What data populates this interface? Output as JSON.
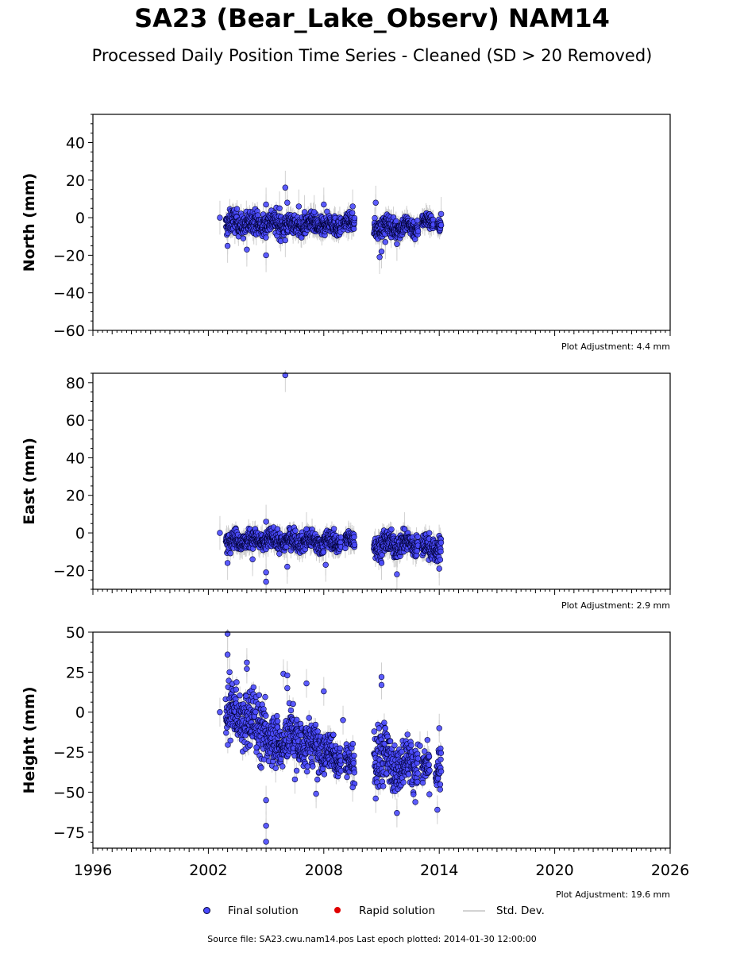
{
  "title": "SA23 (Bear_Lake_Observ) NAM14",
  "subtitle": "Processed Daily Position Time Series - Cleaned (SD > 20 Removed)",
  "source_text": "Source file: SA23.cwu.nam14.pos  Last epoch plotted: 2014-01-30 12:00:00",
  "legend": {
    "final_label": "Final solution",
    "rapid_label": "Rapid solution",
    "std_label": "Std. Dev.",
    "final_color": "#4b4bff",
    "rapid_color": "#e00000",
    "std_color": "#d3d3d3"
  },
  "colors": {
    "point_fill": "#4b4bff",
    "point_edge": "#000033",
    "errorbar": "#c8c8c8"
  },
  "chart_data": [
    {
      "type": "scatter",
      "ylabel": "North (mm)",
      "ylim": [
        -60,
        55
      ],
      "yticks": [
        -60,
        -40,
        -20,
        0,
        20,
        40
      ],
      "xlim": [
        1996,
        2026
      ],
      "xticks": [
        1996,
        2002,
        2008,
        2014,
        2020,
        2026
      ],
      "show_x_tick_labels": false,
      "adjustment": "Plot Adjustment: 4.4 mm",
      "segments": [
        {
          "start": 2002.9,
          "end": 2006.1,
          "center": -3,
          "spread": 3
        },
        {
          "start": 2006.1,
          "end": 2008.9,
          "center": -4,
          "spread": 2.5
        },
        {
          "start": 2009.0,
          "end": 2009.6,
          "center": -3,
          "spread": 2
        },
        {
          "start": 2010.6,
          "end": 2012.9,
          "center": -5,
          "spread": 2.5
        },
        {
          "start": 2013.1,
          "end": 2013.7,
          "center": -2,
          "spread": 2
        },
        {
          "start": 2013.9,
          "end": 2014.1,
          "center": -4,
          "spread": 1.5
        }
      ],
      "outliers": [
        [
          2002.6,
          0
        ],
        [
          2003.0,
          -15
        ],
        [
          2004.0,
          -17
        ],
        [
          2005.0,
          -20
        ],
        [
          2005.0,
          7
        ],
        [
          2005.7,
          5
        ],
        [
          2006.0,
          16
        ],
        [
          2006.1,
          8
        ],
        [
          2006.0,
          -12
        ],
        [
          2006.7,
          6
        ],
        [
          2007.0,
          3
        ],
        [
          2007.5,
          3
        ],
        [
          2008.0,
          7
        ],
        [
          2009.5,
          6
        ],
        [
          2010.7,
          8
        ],
        [
          2010.9,
          -21
        ],
        [
          2011.0,
          -18
        ],
        [
          2011.2,
          -13
        ],
        [
          2011.8,
          -14
        ],
        [
          2014.1,
          2
        ]
      ]
    },
    {
      "type": "scatter",
      "ylabel": "East (mm)",
      "ylim": [
        -30,
        85
      ],
      "yticks": [
        -20,
        0,
        20,
        40,
        60,
        80
      ],
      "xlim": [
        1996,
        2026
      ],
      "xticks": [
        1996,
        2002,
        2008,
        2014,
        2020,
        2026
      ],
      "show_x_tick_labels": false,
      "adjustment": "Plot Adjustment: 2.9 mm",
      "segments": [
        {
          "start": 2002.9,
          "end": 2005.0,
          "center": -4,
          "spread": 2.5
        },
        {
          "start": 2005.0,
          "end": 2007.3,
          "center": -4,
          "spread": 2.5
        },
        {
          "start": 2007.3,
          "end": 2008.9,
          "center": -5,
          "spread": 2.5
        },
        {
          "start": 2009.1,
          "end": 2009.6,
          "center": -4,
          "spread": 2
        },
        {
          "start": 2010.6,
          "end": 2012.9,
          "center": -6,
          "spread": 3
        },
        {
          "start": 2013.1,
          "end": 2014.1,
          "center": -8,
          "spread": 3
        }
      ],
      "outliers": [
        [
          2002.6,
          0
        ],
        [
          2003.0,
          -16
        ],
        [
          2004.3,
          -14
        ],
        [
          2005.0,
          -26
        ],
        [
          2005.0,
          6
        ],
        [
          2005.0,
          -21
        ],
        [
          2006.0,
          84
        ],
        [
          2006.1,
          -18
        ],
        [
          2007.1,
          2
        ],
        [
          2008.1,
          -17
        ],
        [
          2011.0,
          -16
        ],
        [
          2011.8,
          -22
        ],
        [
          2012.2,
          2
        ],
        [
          2014.0,
          -19
        ]
      ]
    },
    {
      "type": "scatter",
      "ylabel": "Height (mm)",
      "ylim": [
        -85,
        50
      ],
      "yticks": [
        -75,
        -50,
        -25,
        0,
        25,
        50
      ],
      "xlim": [
        1996,
        2026
      ],
      "xticks": [
        1996,
        2002,
        2008,
        2014,
        2020,
        2026
      ],
      "show_x_tick_labels": true,
      "adjustment": "Plot Adjustment: 19.6 mm",
      "segments": [
        {
          "start": 2002.9,
          "end": 2004.0,
          "center": -2,
          "spread": 8
        },
        {
          "start": 2004.0,
          "end": 2005.0,
          "center": -8,
          "spread": 10
        },
        {
          "start": 2005.0,
          "end": 2006.0,
          "center": -18,
          "spread": 8
        },
        {
          "start": 2006.0,
          "end": 2007.0,
          "center": -17,
          "spread": 8
        },
        {
          "start": 2007.0,
          "end": 2008.0,
          "center": -22,
          "spread": 7
        },
        {
          "start": 2008.0,
          "end": 2008.9,
          "center": -27,
          "spread": 6
        },
        {
          "start": 2009.1,
          "end": 2009.6,
          "center": -32,
          "spread": 5
        },
        {
          "start": 2010.6,
          "end": 2011.2,
          "center": -25,
          "spread": 10
        },
        {
          "start": 2011.2,
          "end": 2012.9,
          "center": -32,
          "spread": 7
        },
        {
          "start": 2013.1,
          "end": 2013.5,
          "center": -37,
          "spread": 6
        },
        {
          "start": 2013.8,
          "end": 2014.1,
          "center": -35,
          "spread": 7
        }
      ],
      "outliers": [
        [
          2002.6,
          0
        ],
        [
          2003.0,
          49
        ],
        [
          2003.0,
          36
        ],
        [
          2003.1,
          25
        ],
        [
          2004.0,
          31
        ],
        [
          2004.0,
          27
        ],
        [
          2004.5,
          -22
        ],
        [
          2005.0,
          -81
        ],
        [
          2005.0,
          -71
        ],
        [
          2005.0,
          -55
        ],
        [
          2005.5,
          -35
        ],
        [
          2005.9,
          24
        ],
        [
          2006.1,
          23
        ],
        [
          2006.1,
          15
        ],
        [
          2006.5,
          -42
        ],
        [
          2007.1,
          18
        ],
        [
          2007.6,
          -51
        ],
        [
          2008.0,
          13
        ],
        [
          2009.0,
          -5
        ],
        [
          2009.5,
          -47
        ],
        [
          2010.7,
          -54
        ],
        [
          2011.0,
          22
        ],
        [
          2011.0,
          17
        ],
        [
          2011.8,
          -63
        ],
        [
          2013.0,
          -21
        ],
        [
          2013.9,
          -61
        ],
        [
          2014.0,
          -10
        ]
      ]
    }
  ]
}
